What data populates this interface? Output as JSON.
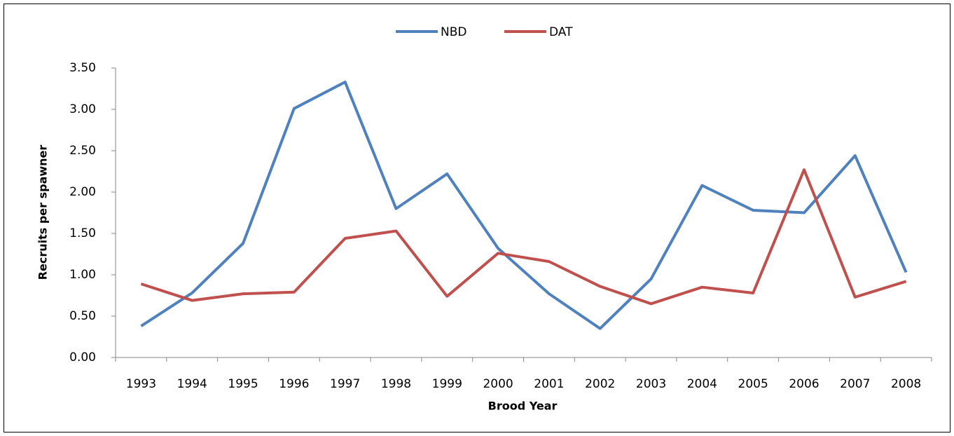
{
  "chart_data": {
    "type": "line",
    "x_label": "Brood Year",
    "y_label": "Recruits per spawner",
    "categories": [
      "1993",
      "1994",
      "1995",
      "1996",
      "1997",
      "1998",
      "1999",
      "2000",
      "2001",
      "2002",
      "2003",
      "2004",
      "2005",
      "2006",
      "2007",
      "2008"
    ],
    "series": [
      {
        "name": "NBD",
        "color": "#4f81bd",
        "values": [
          0.38,
          0.78,
          1.38,
          3.01,
          3.33,
          1.8,
          2.22,
          1.32,
          0.77,
          0.35,
          0.95,
          2.08,
          1.78,
          1.75,
          2.44,
          1.03
        ]
      },
      {
        "name": "DAT",
        "color": "#c0504d",
        "values": [
          0.89,
          0.69,
          0.77,
          0.79,
          1.44,
          1.53,
          0.74,
          1.26,
          1.16,
          0.86,
          0.65,
          0.85,
          0.78,
          2.27,
          0.73,
          0.92
        ]
      }
    ],
    "ylim": [
      0,
      3.5
    ],
    "yticks": [
      {
        "value": 0,
        "label": "0.00"
      },
      {
        "value": 0.5,
        "label": "0.50"
      },
      {
        "value": 1,
        "label": "1.00"
      },
      {
        "value": 1.5,
        "label": "1.50"
      },
      {
        "value": 2,
        "label": "2.00"
      },
      {
        "value": 2.5,
        "label": "2.50"
      },
      {
        "value": 3,
        "label": "3.00"
      },
      {
        "value": 3.5,
        "label": "3.50"
      }
    ],
    "legend": "top"
  }
}
